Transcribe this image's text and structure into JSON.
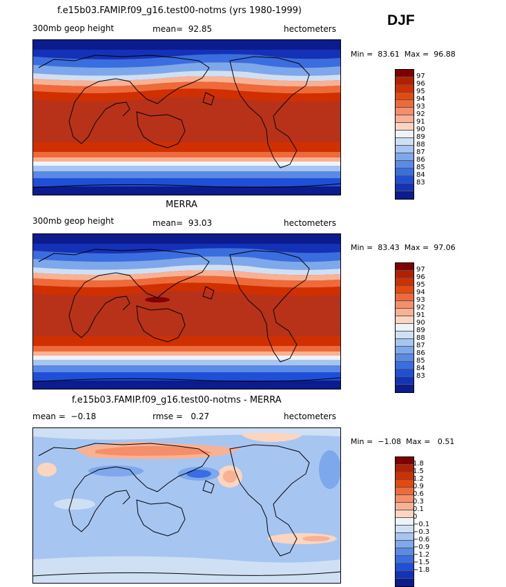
{
  "season": "DJF",
  "colors": {
    "red_scale": [
      "#7f0000",
      "#b22000",
      "#d03000",
      "#e24a10",
      "#ef6a3a",
      "#f58e6a",
      "#f8b293",
      "#fbd5c0",
      "#eef3f9",
      "#cfe0f5",
      "#a7c5f1",
      "#7ea8ec",
      "#5a8ae6",
      "#3a6ee0",
      "#1f4fd6",
      "#1432b8",
      "#0c1c8e"
    ],
    "diff_scale": [
      "#7f0000",
      "#b22000",
      "#d03000",
      "#e24a10",
      "#ef6a3a",
      "#f58e6a",
      "#f8b293",
      "#fbd5c0",
      "#eef3f9",
      "#cfe0f5",
      "#a7c5f1",
      "#7ea8ec",
      "#5a8ae6",
      "#3a6ee0",
      "#1f4fd6",
      "#1432b8",
      "#0c1c8e"
    ],
    "coast": "#000000"
  },
  "panels": [
    {
      "title": "f.e15b03.FAMIP.f09_g16.test00-notms (yrs 1980-1999)",
      "left_label": "300mb geop height",
      "mean_label": "mean=",
      "mean_value": "92.85",
      "units": "hectometers",
      "min_label": "Min =",
      "min_value": "83.61",
      "max_label": "Max =",
      "max_value": "96.88",
      "colorbar_labels": [
        "97",
        "96",
        "95",
        "94",
        "93",
        "92",
        "91",
        "90",
        "89",
        "88",
        "87",
        "86",
        "85",
        "84",
        "83"
      ]
    },
    {
      "title": "MERRA",
      "left_label": "300mb geop height",
      "mean_label": "mean=",
      "mean_value": "93.03",
      "units": "hectometers",
      "min_label": "Min =",
      "min_value": "83.43",
      "max_label": "Max =",
      "max_value": "97.06",
      "colorbar_labels": [
        "97",
        "96",
        "95",
        "94",
        "93",
        "92",
        "91",
        "90",
        "89",
        "88",
        "87",
        "86",
        "85",
        "84",
        "83"
      ]
    },
    {
      "title": "f.e15b03.FAMIP.f09_g16.test00-notms - MERRA",
      "left_label": "mean =",
      "mean_label": "rmse =",
      "left_value": "−0.18",
      "mean_value": "0.27",
      "units": "hectometers",
      "min_label": "Min =",
      "min_value": "−1.08",
      "max_label": "Max =",
      "max_value": "0.51",
      "colorbar_labels": [
        "1.8",
        "1.5",
        "1.2",
        "0.9",
        "0.6",
        "0.3",
        "0.1",
        "0",
        "−0.1",
        "−0.3",
        "−0.6",
        "−0.9",
        "−1.2",
        "−1.5",
        "−1.8"
      ]
    }
  ]
}
